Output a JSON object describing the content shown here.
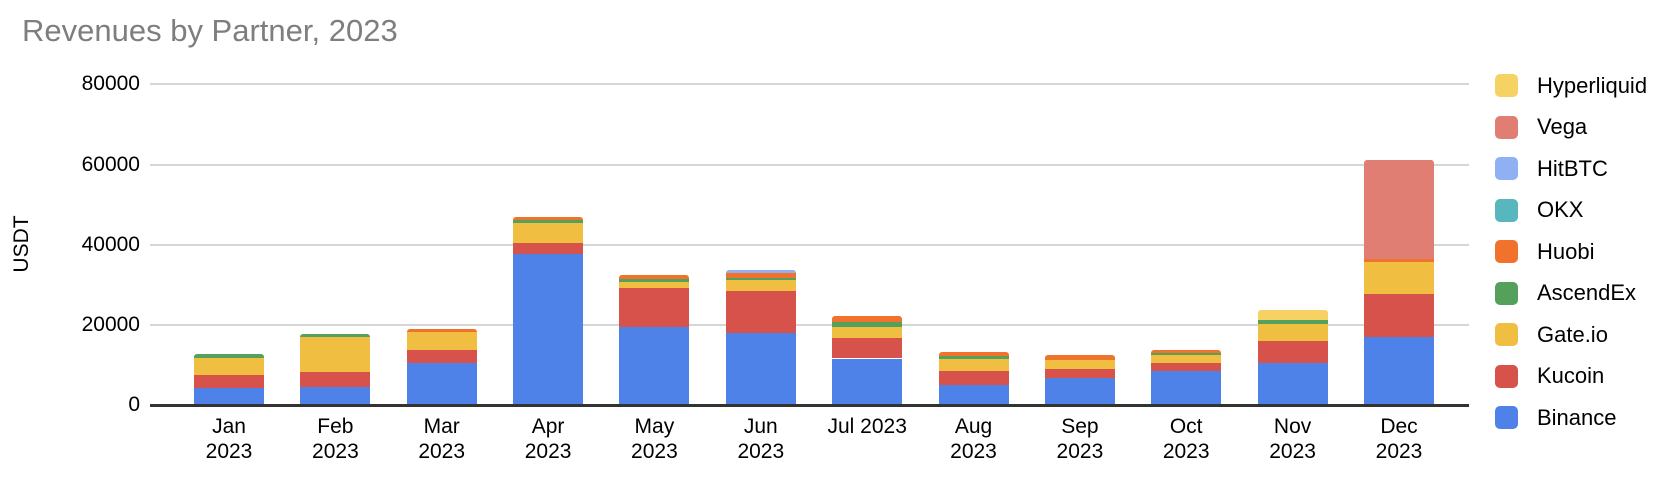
{
  "title": "Revenues by Partner, 2023",
  "colors": {
    "background": "#FFFFFF",
    "title_text": "#7E7E7E",
    "axis_text": "#000000",
    "gridline": "#D6D6D6",
    "baseline": "#333333"
  },
  "chart_data": {
    "type": "bar",
    "stacked": true,
    "title": "Revenues by Partner, 2023",
    "xlabel": "",
    "ylabel": "USDT",
    "ylim": [
      0,
      80000
    ],
    "yticks": [
      0,
      20000,
      40000,
      60000,
      80000
    ],
    "grid": true,
    "legend_position": "right",
    "categories": [
      "Jan 2023",
      "Feb 2023",
      "Mar 2023",
      "Apr 2023",
      "May 2023",
      "Jun 2023",
      "Jul 2023",
      "Aug 2023",
      "Sep 2023",
      "Oct 2023",
      "Nov 2023",
      "Dec 2023"
    ],
    "category_label_lines": [
      [
        "Jan",
        "2023"
      ],
      [
        "Feb",
        "2023"
      ],
      [
        "Mar",
        "2023"
      ],
      [
        "Apr",
        "2023"
      ],
      [
        "May",
        "2023"
      ],
      [
        "Jun",
        "2023"
      ],
      [
        "Jul 2023"
      ],
      [
        "Aug",
        "2023"
      ],
      [
        "Sep",
        "2023"
      ],
      [
        "Oct",
        "2023"
      ],
      [
        "Nov",
        "2023"
      ],
      [
        "Dec",
        "2023"
      ]
    ],
    "series": [
      {
        "name": "Binance",
        "color": "#4F82E8",
        "values": [
          4200,
          4600,
          10500,
          37600,
          19500,
          18000,
          11600,
          5000,
          6800,
          8500,
          10500,
          17000
        ]
      },
      {
        "name": "Kucoin",
        "color": "#D6524A",
        "values": [
          3300,
          3700,
          3200,
          2900,
          9600,
          10500,
          5200,
          3500,
          2100,
          2100,
          5500,
          10800
        ]
      },
      {
        "name": "Gate.io",
        "color": "#F0BF42",
        "values": [
          4200,
          8600,
          4600,
          5000,
          1700,
          2700,
          2750,
          2900,
          2400,
          1900,
          4250,
          7900
        ]
      },
      {
        "name": "AscendEx",
        "color": "#55A05B",
        "values": [
          1100,
          750,
          0,
          650,
          750,
          600,
          1250,
          750,
          0,
          580,
          900,
          0
        ]
      },
      {
        "name": "Huobi",
        "color": "#F1722D",
        "values": [
          0,
          0,
          700,
          750,
          800,
          1100,
          1450,
          1000,
          1100,
          580,
          0,
          850
        ]
      },
      {
        "name": "OKX",
        "color": "#58B7BE",
        "values": [
          0,
          0,
          0,
          0,
          0,
          0,
          0,
          0,
          0,
          0,
          0,
          0
        ]
      },
      {
        "name": "HitBTC",
        "color": "#8FB0F2",
        "values": [
          0,
          0,
          0,
          0,
          0,
          750,
          0,
          0,
          0,
          0,
          0,
          0
        ]
      },
      {
        "name": "Vega",
        "color": "#E07E74",
        "values": [
          0,
          0,
          0,
          0,
          0,
          0,
          0,
          0,
          0,
          0,
          0,
          24500
        ]
      },
      {
        "name": "Hyperliquid",
        "color": "#F6D163",
        "values": [
          0,
          0,
          0,
          0,
          0,
          0,
          0,
          0,
          0,
          0,
          2600,
          0
        ]
      }
    ],
    "legend": [
      {
        "label": "Hyperliquid",
        "color": "#F6D163"
      },
      {
        "label": "Vega",
        "color": "#E07E74"
      },
      {
        "label": "HitBTC",
        "color": "#8FB0F2"
      },
      {
        "label": "OKX",
        "color": "#58B7BE"
      },
      {
        "label": "Huobi",
        "color": "#F1722D"
      },
      {
        "label": "AscendEx",
        "color": "#55A05B"
      },
      {
        "label": "Gate.io",
        "color": "#F0BF42"
      },
      {
        "label": "Kucoin",
        "color": "#D6524A"
      },
      {
        "label": "Binance",
        "color": "#4F82E8"
      }
    ]
  }
}
